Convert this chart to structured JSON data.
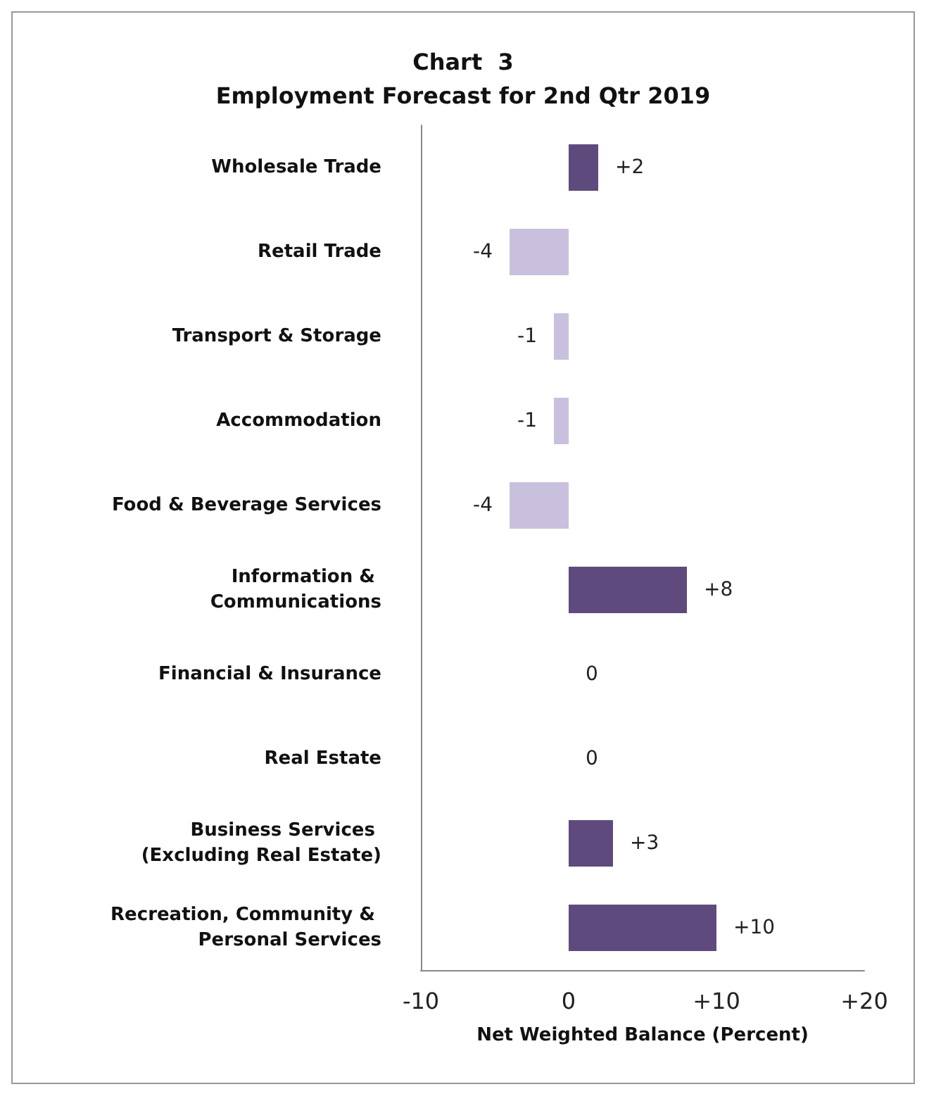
{
  "chart_data": {
    "type": "bar",
    "orientation": "horizontal",
    "title": "Chart  3\nEmployment Forecast for 2nd Qtr 2019",
    "xlabel": "Net Weighted Balance (Percent)",
    "categories": [
      "Wholesale Trade",
      "Retail Trade",
      "Transport & Storage",
      "Accommodation",
      "Food & Beverage Services",
      "Information & Communications",
      "Financial & Insurance",
      "Real Estate",
      "Business Services (Excluding Real Estate)",
      "Recreation, Community & Personal Services"
    ],
    "values": [
      2,
      -4,
      -1,
      -1,
      -4,
      8,
      0,
      0,
      3,
      10
    ],
    "colors": [
      "#5f4a7e",
      "#c9c0dd",
      "#c9c0dd",
      "#c9c0dd",
      "#c9c0dd",
      "#5f4a7e",
      "#5f4a7e",
      "#5f4a7e",
      "#5f4a7e",
      "#5f4a7e"
    ],
    "value_labels": [
      "+2",
      "-4",
      "-1",
      "-1",
      "-4",
      "+8",
      "0",
      "0",
      "+3",
      "+10"
    ],
    "xlim": [
      -10,
      20
    ],
    "xticks": [
      {
        "value": -10,
        "label": "-10"
      },
      {
        "value": 0,
        "label": "0"
      },
      {
        "value": 10,
        "label": "+10"
      },
      {
        "value": 20,
        "label": "+20"
      }
    ],
    "grid": false
  }
}
